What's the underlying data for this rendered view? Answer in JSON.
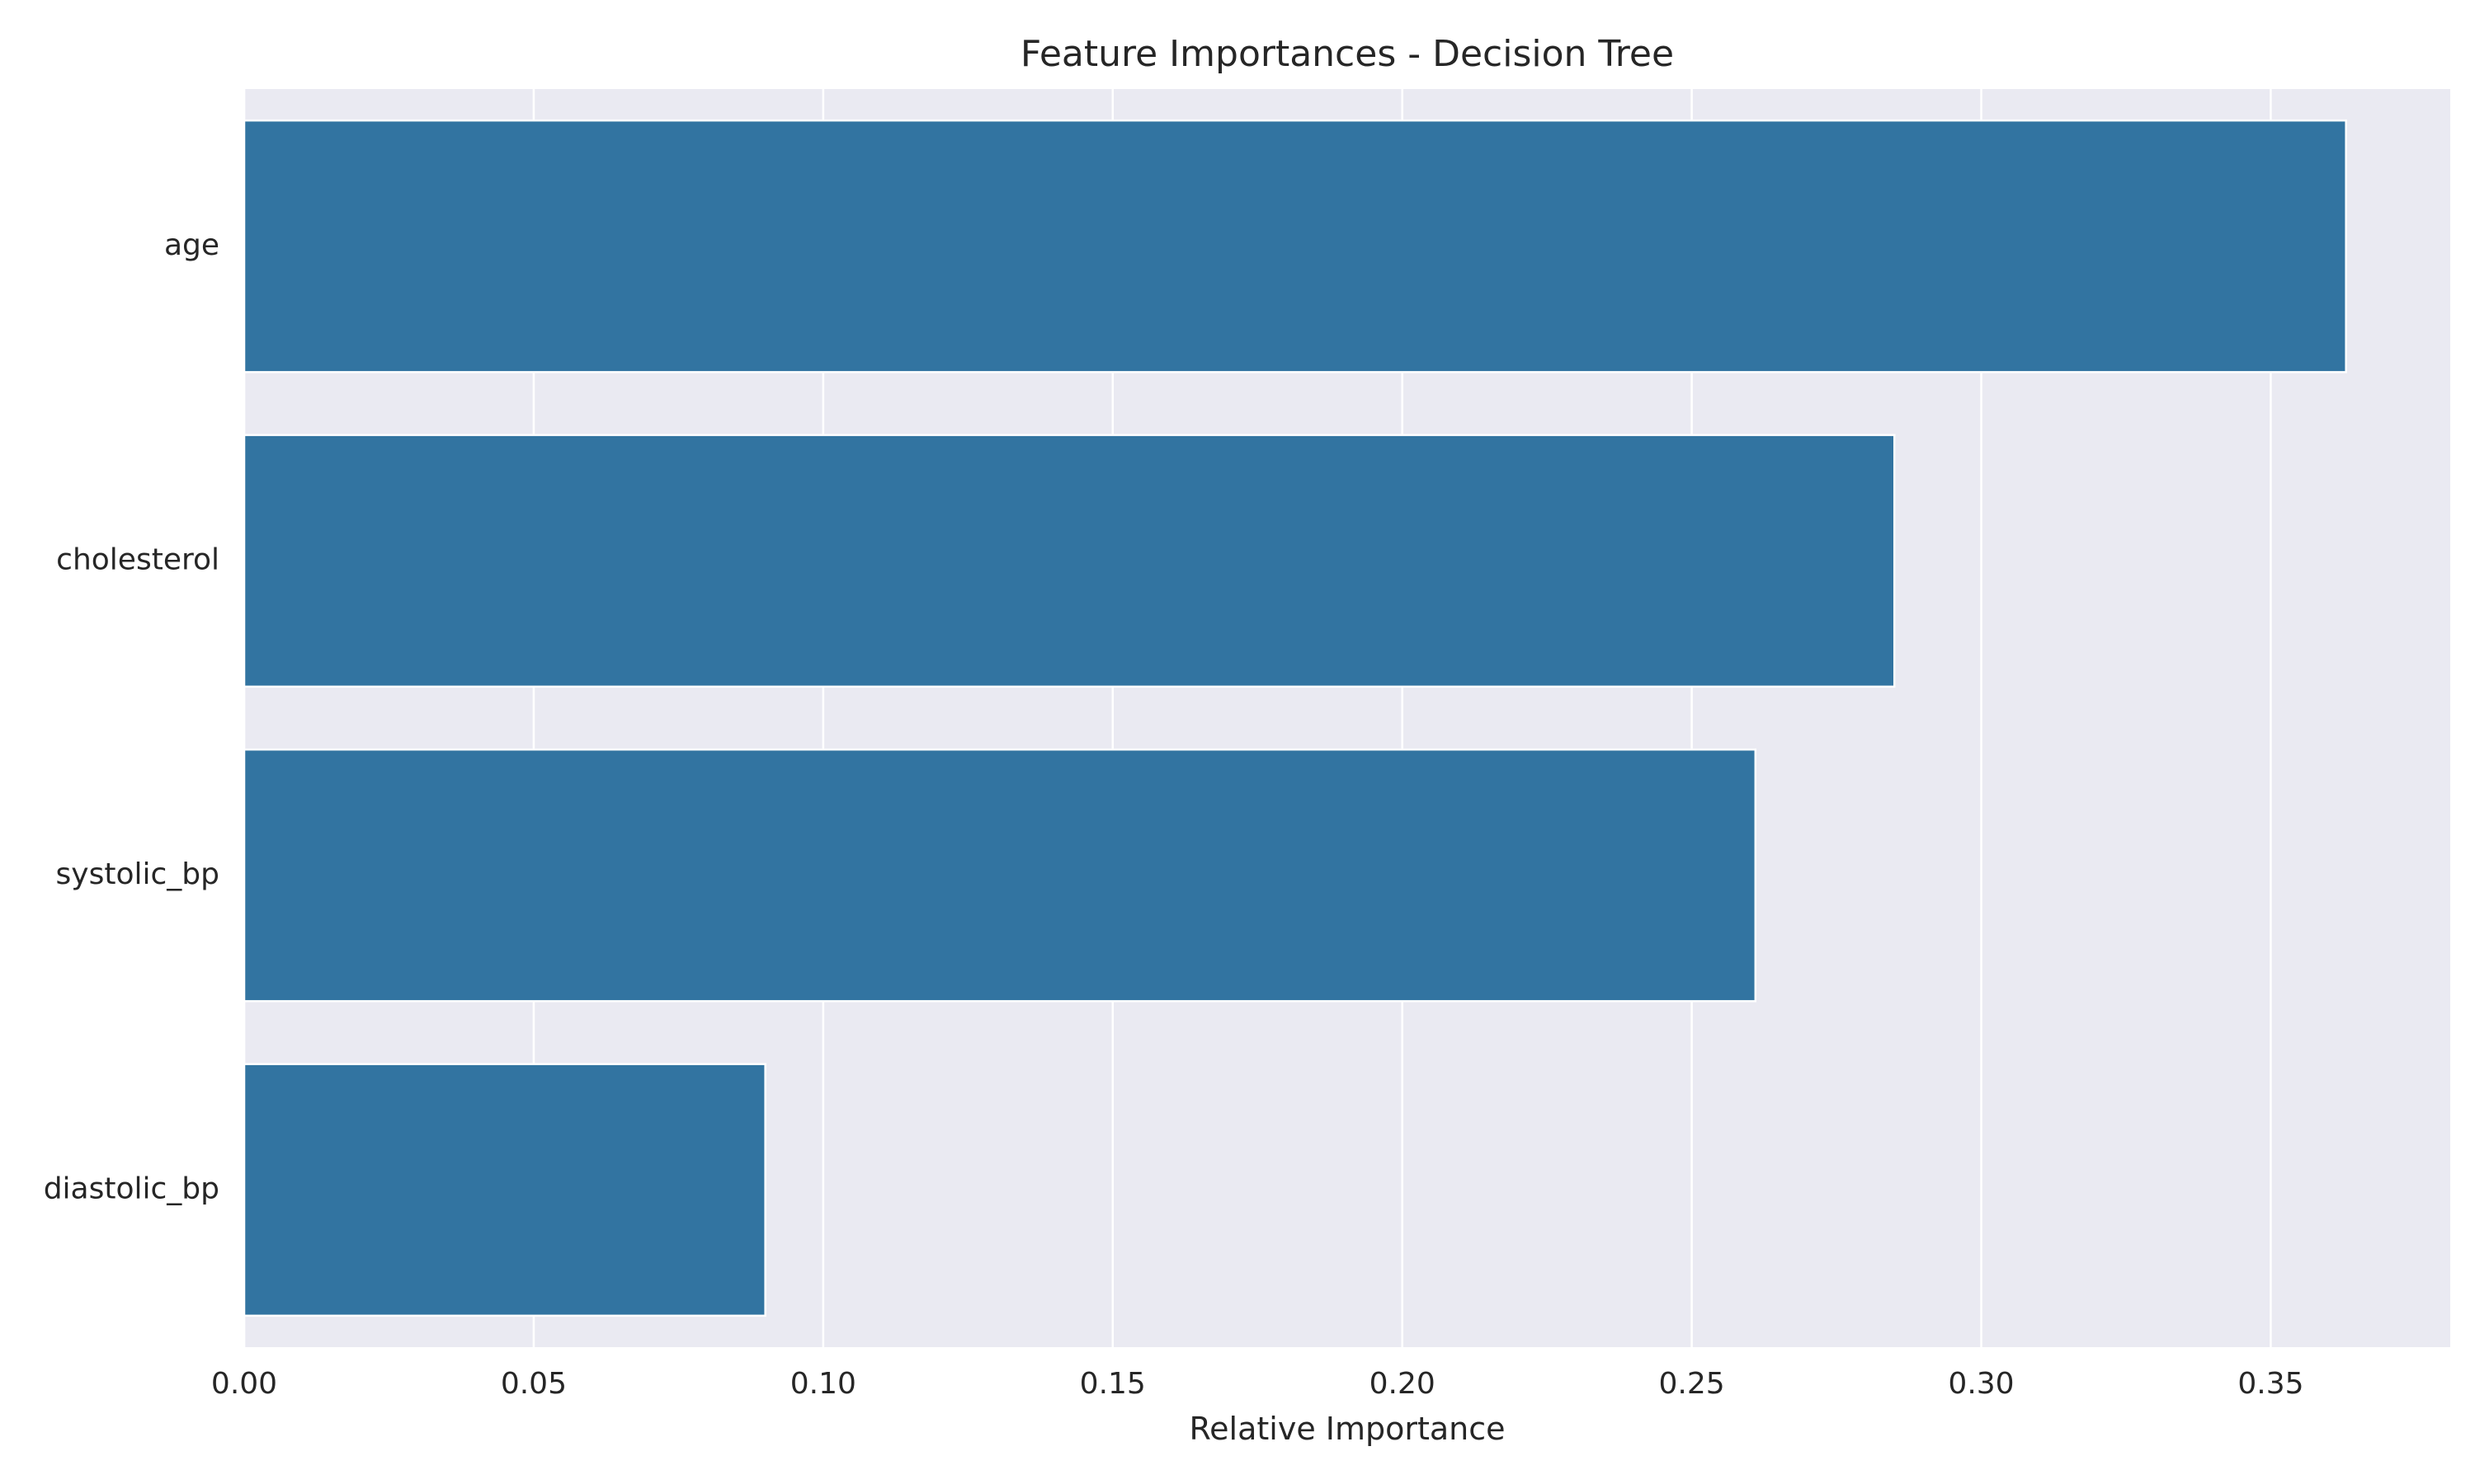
{
  "chart_data": {
    "type": "bar",
    "orientation": "horizontal",
    "title": "Feature Importances - Decision Tree",
    "xlabel": "Relative Importance",
    "ylabel": "",
    "categories": [
      "age",
      "cholesterol",
      "systolic_bp",
      "diastolic_bp"
    ],
    "values": [
      0.363,
      0.285,
      0.261,
      0.09
    ],
    "xlim": [
      0,
      0.381
    ],
    "xticks": [
      0.0,
      0.05,
      0.1,
      0.15,
      0.2,
      0.25,
      0.3,
      0.35
    ],
    "xtick_labels": [
      "0.00",
      "0.05",
      "0.10",
      "0.15",
      "0.20",
      "0.25",
      "0.30",
      "0.35"
    ],
    "grid": true,
    "colors": {
      "bar": "#3274a1",
      "plot_background": "#eaeaf2",
      "grid": "#ffffff",
      "text": "#262626"
    }
  }
}
